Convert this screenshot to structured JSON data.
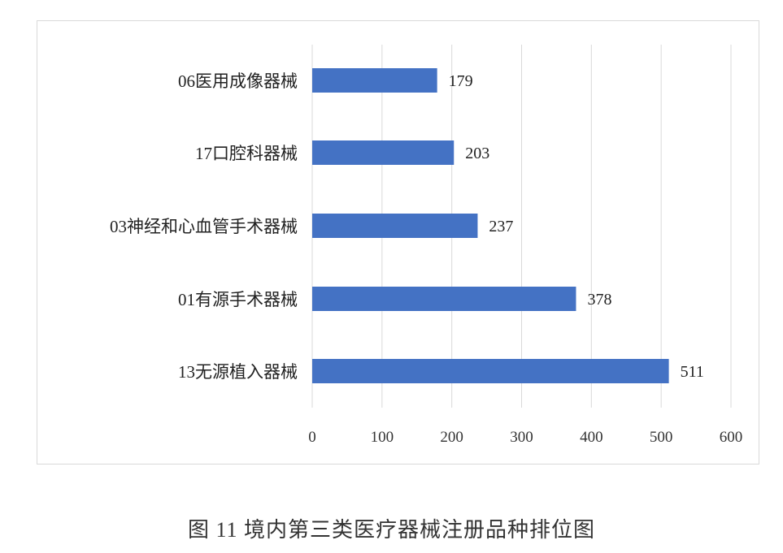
{
  "chart_data": {
    "type": "bar",
    "orientation": "horizontal",
    "categories": [
      "06医用成像器械",
      "17口腔科器械",
      "03神经和心血管手术器械",
      "01有源手术器械",
      "13无源植入器械"
    ],
    "values": [
      179,
      203,
      237,
      378,
      511
    ],
    "data_labels": [
      "179",
      "203",
      "237",
      "378",
      "511"
    ],
    "xlim": [
      0,
      600
    ],
    "xticks": [
      "0",
      "100",
      "200",
      "300",
      "400",
      "500",
      "600"
    ],
    "grid": "vertical",
    "bar_color": "#4472C4",
    "title": ""
  },
  "caption": "图 11  境内第三类医疗器械注册品种排位图"
}
